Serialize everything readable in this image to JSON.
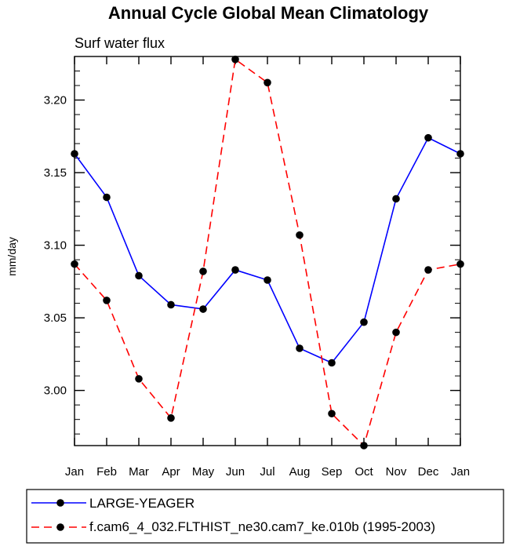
{
  "chart_data": {
    "type": "line",
    "title": "Annual Cycle Global Mean Climatology",
    "subtitle": "Surf water flux",
    "xlabel": "",
    "ylabel": "mm/day",
    "categories": [
      "Jan",
      "Feb",
      "Mar",
      "Apr",
      "May",
      "Jun",
      "Jul",
      "Aug",
      "Sep",
      "Oct",
      "Nov",
      "Dec",
      "Jan"
    ],
    "ylim": [
      2.962,
      3.23
    ],
    "yticks": [
      3.0,
      3.05,
      3.1,
      3.15,
      3.2
    ],
    "ytick_labels": [
      "3.00",
      "3.05",
      "3.10",
      "3.15",
      "3.20"
    ],
    "minor_ytick_step": 0.01,
    "grid": false,
    "legend_position": "bottom",
    "series": [
      {
        "name": "LARGE-YEAGER",
        "color": "#0000ff",
        "line_style": "solid",
        "marker": "circle",
        "values": [
          3.163,
          3.133,
          3.079,
          3.059,
          3.056,
          3.083,
          3.076,
          3.029,
          3.019,
          3.047,
          3.132,
          3.174,
          3.163
        ]
      },
      {
        "name": "f.cam6_4_032.FLTHIST_ne30.cam7_ke.010b (1995-2003)",
        "color": "#ff0000",
        "line_style": "dashed",
        "marker": "circle",
        "values": [
          3.087,
          3.062,
          3.008,
          2.981,
          3.082,
          3.228,
          3.212,
          3.107,
          2.984,
          2.962,
          3.04,
          3.083,
          3.087
        ]
      }
    ]
  }
}
